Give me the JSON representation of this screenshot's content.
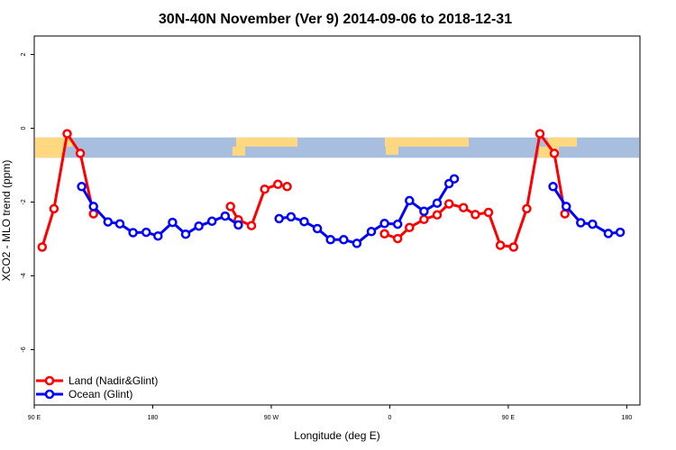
{
  "chart_data": {
    "type": "line",
    "title": "30N-40N November (Ver 9)   2014-09-06 to 2018-12-31",
    "xlabel": "Longitude (deg E)",
    "ylabel": "XCO2 - MLO trend (ppm)",
    "xlim": [
      90,
      550
    ],
    "ylim": [
      -7.5,
      2.5
    ],
    "x_ticks": [
      {
        "value": 90,
        "label": "90 E"
      },
      {
        "value": 180,
        "label": "180"
      },
      {
        "value": 270,
        "label": "90 W"
      },
      {
        "value": 360,
        "label": "0"
      },
      {
        "value": 450,
        "label": "90 E"
      },
      {
        "value": 540,
        "label": "180"
      }
    ],
    "y_ticks": [
      {
        "value": 2,
        "label": "2"
      },
      {
        "value": 0,
        "label": "0"
      },
      {
        "value": -2,
        "label": "-2"
      },
      {
        "value": -4,
        "label": "-4"
      },
      {
        "value": -6,
        "label": "-6"
      }
    ],
    "map_band": {
      "ymin": -0.8,
      "ymax": -0.25,
      "ocean_color": "#a7bedf",
      "land_color": "#ffd880"
    },
    "legend_position": "bottom-left",
    "series": [
      {
        "name": "Land (Nadir&Glint)",
        "color": "#ff0000",
        "segments": [
          [
            [
              96,
              -3.22
            ],
            [
              105,
              -2.18
            ],
            [
              115,
              -0.15
            ],
            [
              125,
              -0.68
            ],
            [
              135,
              -2.32
            ]
          ],
          [
            [
              239,
              -2.12
            ],
            [
              245,
              -2.48
            ],
            [
              255,
              -2.64
            ],
            [
              265,
              -1.65
            ],
            [
              275,
              -1.52
            ],
            [
              282,
              -1.58
            ]
          ],
          [
            [
              356,
              -2.86
            ],
            [
              366,
              -2.99
            ],
            [
              375,
              -2.69
            ],
            [
              386,
              -2.47
            ],
            [
              396,
              -2.35
            ],
            [
              405,
              -2.05
            ],
            [
              416,
              -2.15
            ],
            [
              425,
              -2.34
            ],
            [
              435,
              -2.28
            ],
            [
              444,
              -3.17
            ],
            [
              454,
              -3.22
            ],
            [
              464,
              -2.18
            ],
            [
              474,
              -0.15
            ],
            [
              485,
              -0.68
            ],
            [
              493,
              -2.32
            ]
          ]
        ]
      },
      {
        "name": "Ocean (Glint)",
        "color": "#0000ff",
        "segments": [
          [
            [
              126,
              -1.58
            ],
            [
              135,
              -2.12
            ],
            [
              146,
              -2.54
            ],
            [
              155,
              -2.59
            ],
            [
              165,
              -2.83
            ],
            [
              175,
              -2.82
            ],
            [
              184,
              -2.92
            ],
            [
              195,
              -2.55
            ],
            [
              205,
              -2.87
            ],
            [
              215,
              -2.65
            ],
            [
              225,
              -2.52
            ],
            [
              235,
              -2.38
            ],
            [
              245,
              -2.62
            ]
          ],
          [
            [
              276,
              -2.45
            ],
            [
              285,
              -2.4
            ],
            [
              295,
              -2.53
            ],
            [
              305,
              -2.72
            ],
            [
              315,
              -3.02
            ],
            [
              325,
              -3.02
            ],
            [
              335,
              -3.12
            ],
            [
              346,
              -2.8
            ],
            [
              356,
              -2.58
            ],
            [
              366,
              -2.6
            ],
            [
              375,
              -1.96
            ],
            [
              386,
              -2.25
            ],
            [
              396,
              -2.03
            ],
            [
              405,
              -1.5
            ],
            [
              409,
              -1.37
            ]
          ],
          [
            [
              484,
              -1.58
            ],
            [
              494,
              -2.12
            ],
            [
              505,
              -2.56
            ],
            [
              514,
              -2.6
            ],
            [
              526,
              -2.85
            ],
            [
              535,
              -2.82
            ]
          ]
        ]
      }
    ]
  }
}
